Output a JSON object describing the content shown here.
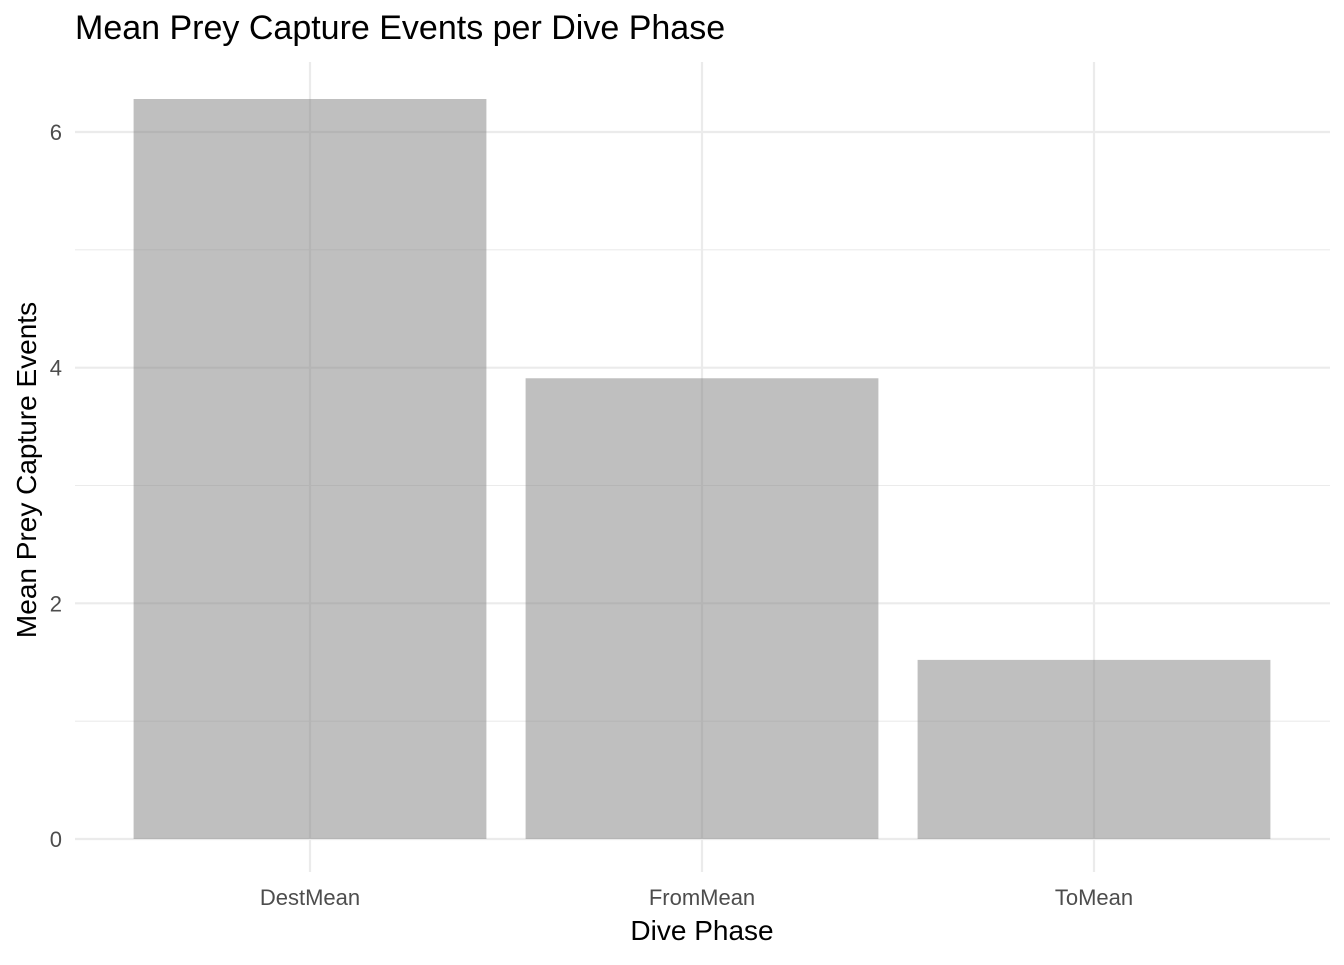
{
  "chart_data": {
    "type": "bar",
    "title": "Mean Prey Capture Events per Dive Phase",
    "xlabel": "Dive Phase",
    "ylabel": "Mean Prey Capture Events",
    "categories": [
      "DestMean",
      "FromMean",
      "ToMean"
    ],
    "values": [
      6.28,
      3.91,
      1.52
    ],
    "ylim": [
      0,
      6.55
    ],
    "yticks": [
      0,
      2,
      4,
      6
    ],
    "yticks_minor": [
      1,
      3,
      5
    ],
    "grid": true,
    "legend": "none",
    "bar_color": "#808080",
    "bar_opacity": 0.5
  }
}
